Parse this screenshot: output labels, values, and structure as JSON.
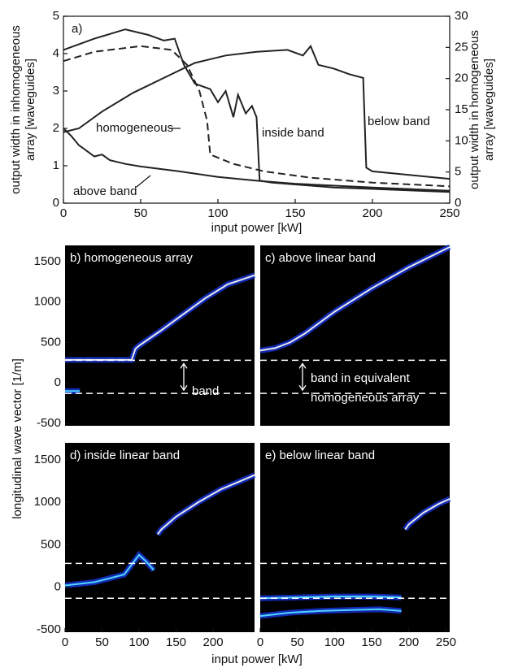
{
  "chart_data": [
    {
      "type": "line",
      "label": "a)",
      "xlabel": "input power [kW]",
      "ylabel": [
        "output width in inhomogeneous",
        "array [waveguides]"
      ],
      "y2label": [
        "output width in homogeneous",
        "array [waveguides]"
      ],
      "xlim": [
        0,
        250
      ],
      "xticks": [
        0,
        50,
        100,
        150,
        200,
        250
      ],
      "ylim": [
        0,
        5
      ],
      "yticks": [
        0,
        1,
        2,
        3,
        4,
        5
      ],
      "y2lim": [
        0,
        30
      ],
      "y2ticks": [
        0,
        5,
        10,
        15,
        20,
        25,
        30
      ],
      "annotations": [
        "homogeneous",
        "inside band",
        "below band",
        "above band"
      ],
      "series": [
        {
          "color": "#222",
          "dash": false,
          "x": [
            0,
            20,
            40,
            55,
            65,
            72,
            78,
            85,
            95,
            100,
            105,
            110,
            113,
            118,
            122,
            125,
            127,
            135,
            150,
            175,
            200,
            225,
            250
          ],
          "values": [
            4.1,
            4.4,
            4.65,
            4.5,
            4.35,
            4.4,
            3.7,
            3.2,
            3.05,
            2.7,
            3.0,
            2.3,
            2.9,
            2.4,
            2.6,
            2.3,
            0.6,
            0.55,
            0.5,
            0.42,
            0.38,
            0.34,
            0.3
          ]
        },
        {
          "color": "#222",
          "dash": true,
          "x": [
            0,
            20,
            50,
            70,
            80,
            88,
            93,
            95,
            110,
            130,
            160,
            200,
            250
          ],
          "values": [
            3.8,
            4.05,
            4.2,
            4.1,
            3.7,
            3.0,
            2.2,
            1.3,
            1.05,
            0.85,
            0.68,
            0.55,
            0.45
          ]
        },
        {
          "color": "#222",
          "dash": false,
          "x": [
            0,
            10,
            25,
            45,
            65,
            85,
            105,
            125,
            145,
            155,
            160,
            165,
            175,
            185,
            194,
            196,
            200,
            225,
            250
          ],
          "values": [
            1.9,
            2.0,
            2.45,
            2.95,
            3.35,
            3.75,
            3.95,
            4.05,
            4.1,
            3.95,
            4.2,
            3.7,
            3.6,
            3.45,
            3.35,
            0.95,
            0.85,
            0.75,
            0.65
          ]
        },
        {
          "color": "#222",
          "dash": false,
          "x": [
            0,
            5,
            10,
            15,
            20,
            25,
            30,
            40,
            50,
            75,
            100,
            125,
            150,
            200,
            250
          ],
          "values": [
            2.0,
            1.8,
            1.55,
            1.4,
            1.25,
            1.3,
            1.15,
            1.05,
            0.98,
            0.85,
            0.7,
            0.6,
            0.52,
            0.42,
            0.33
          ]
        }
      ]
    },
    {
      "type": "heatmap",
      "label": "b) homogeneous array",
      "ylabel": [
        "longitudinal wave vector [1/m]"
      ],
      "xlim": [
        0,
        256
      ],
      "ylim": [
        -530,
        1700
      ],
      "yticks": [
        -500,
        0,
        500,
        1000,
        1500
      ],
      "band_edges": [
        280,
        -130
      ],
      "annotations": [
        "band"
      ],
      "series": [
        {
          "x": [
            0,
            30,
            60,
            90,
            95,
            100,
            130,
            160,
            190,
            220,
            256
          ],
          "values": [
            285,
            285,
            285,
            285,
            420,
            460,
            650,
            850,
            1050,
            1220,
            1330
          ]
        },
        {
          "x": [
            0,
            20
          ],
          "values": [
            -100,
            -100
          ]
        }
      ]
    },
    {
      "type": "heatmap",
      "label": "c) above linear band",
      "xlim": [
        0,
        255
      ],
      "ylim": [
        -530,
        1700
      ],
      "band_edges": [
        280,
        -130
      ],
      "annotations": [
        "band in equivalent",
        "homogeneous array"
      ],
      "series": [
        {
          "x": [
            0,
            20,
            40,
            60,
            100,
            150,
            200,
            255
          ],
          "values": [
            400,
            430,
            500,
            610,
            880,
            1170,
            1430,
            1680
          ]
        }
      ]
    },
    {
      "type": "heatmap",
      "label": "d) inside linear band",
      "xlabel": "input power [kW]",
      "xlim": [
        0,
        256
      ],
      "ylim": [
        -530,
        1700
      ],
      "xticks": [
        0,
        50,
        100,
        150,
        200
      ],
      "yticks": [
        -500,
        0,
        500,
        1000,
        1500
      ],
      "band_edges": [
        280,
        -130
      ],
      "annotations": [],
      "series": [
        {
          "x": [
            125,
            130,
            150,
            180,
            210,
            256
          ],
          "values": [
            620,
            680,
            830,
            1000,
            1150,
            1320
          ]
        },
        {
          "x": [
            0,
            40,
            80,
            100,
            110,
            120
          ],
          "values": [
            20,
            60,
            150,
            380,
            300,
            200
          ]
        }
      ]
    },
    {
      "type": "heatmap",
      "label": "e) below linear band",
      "xlim": [
        0,
        255
      ],
      "ylim": [
        -530,
        1700
      ],
      "xticks": [
        0,
        50,
        100,
        150,
        200,
        250
      ],
      "band_edges": [
        280,
        -130
      ],
      "annotations": [],
      "series": [
        {
          "x": [
            195,
            200,
            220,
            240,
            255
          ],
          "values": [
            680,
            740,
            880,
            980,
            1040
          ]
        },
        {
          "x": [
            0,
            40,
            80,
            120,
            160,
            190
          ],
          "values": [
            -340,
            -300,
            -280,
            -270,
            -260,
            -280
          ]
        },
        {
          "x": [
            0,
            50,
            100,
            150,
            190
          ],
          "values": [
            -130,
            -120,
            -110,
            -110,
            -120
          ]
        }
      ]
    }
  ]
}
